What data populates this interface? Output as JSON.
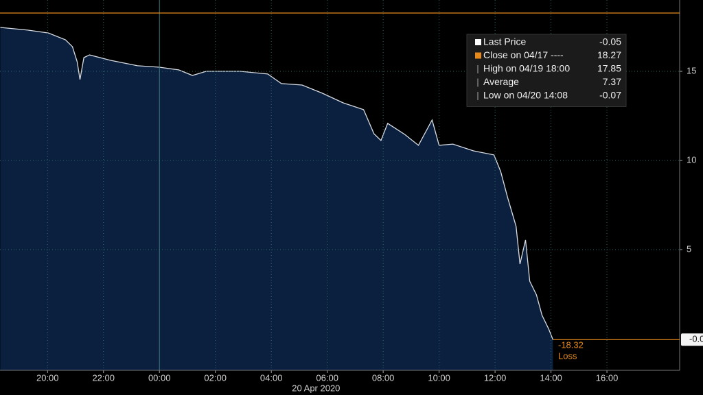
{
  "chart_data": {
    "type": "area",
    "x": [
      -5.69,
      -4.71,
      -3.97,
      -3.36,
      -3.11,
      -2.94,
      -2.84,
      -2.7,
      -2.5,
      -1.76,
      -0.78,
      0,
      0.69,
      1.18,
      1.67,
      2.89,
      3.87,
      4.36,
      5.1,
      5.83,
      6.57,
      7.3,
      7.67,
      7.92,
      8.16,
      8.77,
      9.26,
      9.75,
      10.0,
      10.49,
      11.23,
      11.96,
      12.2,
      12.45,
      12.75,
      12.89,
      13.09,
      13.24,
      13.48,
      13.68,
      13.92,
      14.07
    ],
    "series": [
      {
        "name": "Last Price",
        "color": "#d8dde3",
        "fill": "#0b1f3f",
        "values": [
          17.46,
          17.31,
          17.15,
          16.77,
          16.38,
          15.54,
          14.54,
          15.77,
          15.92,
          15.62,
          15.31,
          15.23,
          15.08,
          14.77,
          15.0,
          15.0,
          14.85,
          14.31,
          14.23,
          13.77,
          13.23,
          12.85,
          11.5,
          11.12,
          12.08,
          11.46,
          10.85,
          12.27,
          10.85,
          10.92,
          10.54,
          10.31,
          9.38,
          7.92,
          6.31,
          4.19,
          5.54,
          3.23,
          2.46,
          1.31,
          0.54,
          -0.05
        ]
      }
    ],
    "xlim": [
      -5.7,
      18.6
    ],
    "xticks": [
      {
        "value": -4,
        "label": "20:00"
      },
      {
        "value": -2,
        "label": "22:00"
      },
      {
        "value": 0,
        "label": "00:00"
      },
      {
        "value": 2,
        "label": "02:00"
      },
      {
        "value": 4,
        "label": "04:00"
      },
      {
        "value": 6,
        "label": "06:00"
      },
      {
        "value": 8,
        "label": "08:00"
      },
      {
        "value": 10,
        "label": "10:00"
      },
      {
        "value": 12,
        "label": "12:00"
      },
      {
        "value": 14,
        "label": "14:00"
      },
      {
        "value": 16,
        "label": "16:00"
      }
    ],
    "date_label": "20 Apr 2020",
    "ylim": [
      -1.77,
      19
    ],
    "yticks": [
      5,
      10,
      15
    ],
    "grid": true,
    "close_line": {
      "value": 18.27,
      "color": "#e8891c"
    },
    "last_marker": {
      "value": -0.05,
      "label": "-0.0"
    },
    "loss_annotation": {
      "value": -18.32,
      "text": "Loss",
      "color": "#e8891c"
    },
    "legend": [
      {
        "label": "Last Price",
        "value": -0.05
      },
      {
        "label": "Close on 04/17 ----",
        "value": 18.27
      },
      {
        "label": "High on 04/19 18:00",
        "value": 17.85
      },
      {
        "label": "Average",
        "value": 7.37
      },
      {
        "label": "Low on 04/20 14:08",
        "value": -0.07
      }
    ]
  }
}
